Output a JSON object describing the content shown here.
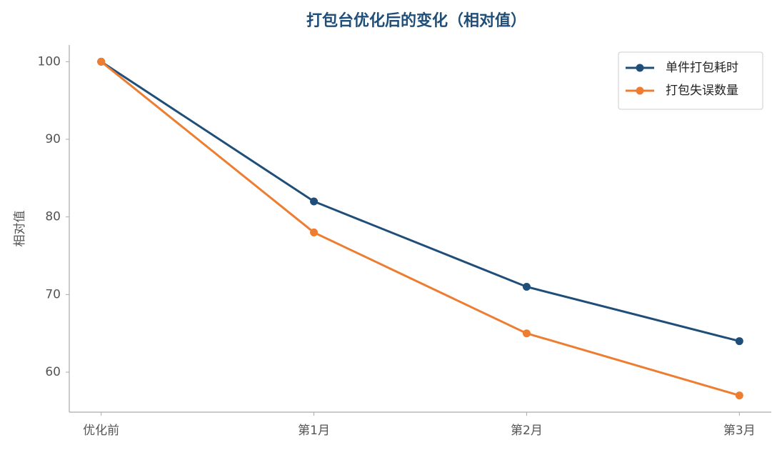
{
  "chart_data": {
    "type": "line",
    "title": "打包台优化后的变化（相对值）",
    "y_label": "相对值",
    "categories": [
      "优化前",
      "第1月",
      "第2月",
      "第3月"
    ],
    "series": [
      {
        "name": "单件打包耗时",
        "color": "#1f4e79",
        "values": [
          100,
          82,
          71,
          64
        ]
      },
      {
        "name": "打包失误数量",
        "color": "#ed7d31",
        "values": [
          100,
          78,
          65,
          57
        ]
      }
    ],
    "ylim": [
      54.85,
      102.15
    ],
    "yticks": [
      60,
      70,
      80,
      90,
      100
    ],
    "grid": false,
    "legend": "upper right"
  }
}
